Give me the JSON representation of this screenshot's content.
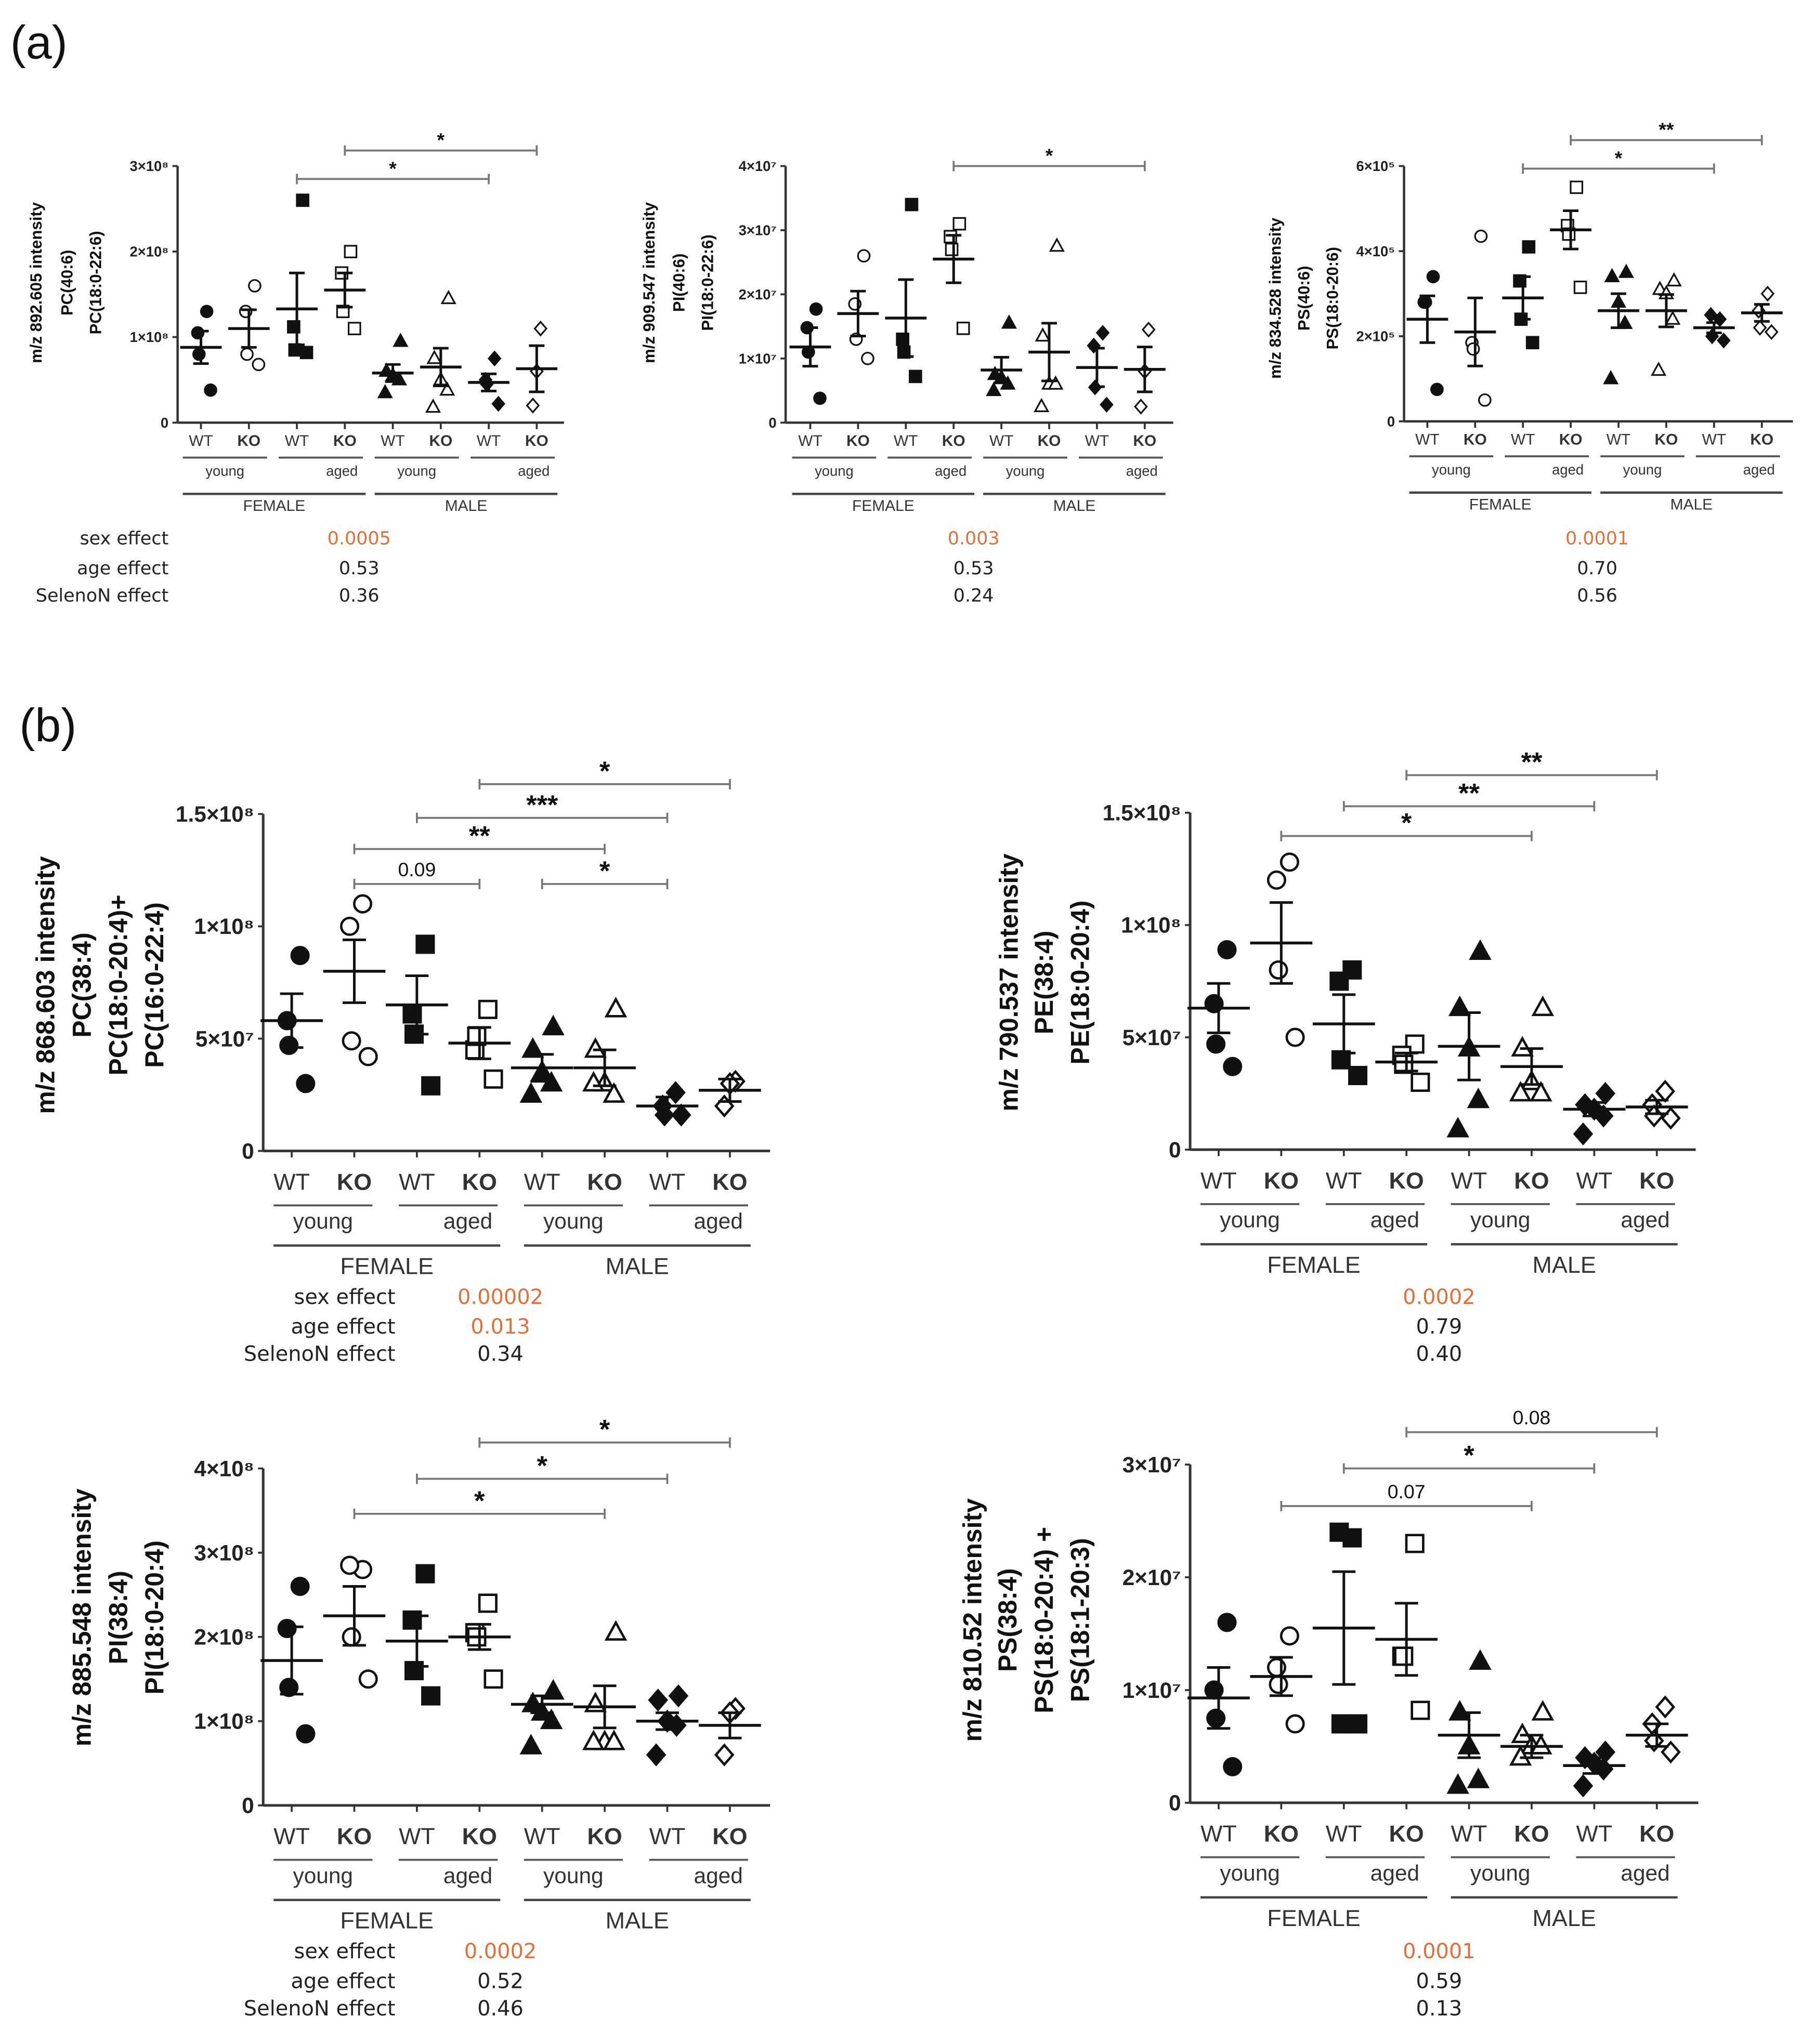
{
  "figure_labels": {
    "a": "(a)",
    "b": "(b)"
  },
  "colors": {
    "significant": "#e0703a",
    "text": "#222222",
    "axis": "#333333",
    "bracket": "#777777"
  },
  "chart_data": [
    {
      "id": "a1",
      "type": "scatter",
      "ylabel": [
        "m/z 892.605 intensity",
        "PC(40:6)",
        "PC(18:0-22:6)"
      ],
      "ylim": [
        0,
        3
      ],
      "unit_multiplier": 100000000,
      "yticks": [
        {
          "v": 0,
          "label": "0"
        },
        {
          "v": 1,
          "label": "1×10⁸"
        },
        {
          "v": 2,
          "label": "2×10⁸"
        },
        {
          "v": 3,
          "label": "3×10⁸"
        }
      ],
      "genotypes": [
        "WT",
        "KO",
        "WT",
        "KO",
        "WT",
        "KO",
        "WT",
        "KO"
      ],
      "ages": [
        "young",
        "aged",
        "young",
        "aged"
      ],
      "sexes": [
        "FEMALE",
        "MALE"
      ],
      "groups": [
        {
          "points": [
            1.3,
            1.05,
            0.8,
            0.38
          ],
          "mean": 0.88,
          "sem": 0.19
        },
        {
          "points": [
            1.6,
            1.3,
            0.8,
            0.68
          ],
          "mean": 1.1,
          "sem": 0.22
        },
        {
          "points": [
            2.6,
            1.12,
            0.85,
            0.82
          ],
          "mean": 1.33,
          "sem": 0.42
        },
        {
          "points": [
            2.0,
            1.75,
            1.3,
            1.1
          ],
          "mean": 1.55,
          "sem": 0.2
        },
        {
          "points": [
            0.95,
            0.6,
            0.55,
            0.5,
            0.35
          ],
          "mean": 0.58,
          "sem": 0.1
        },
        {
          "points": [
            1.45,
            0.75,
            0.5,
            0.38,
            0.18
          ],
          "mean": 0.65,
          "sem": 0.22
        },
        {
          "points": [
            0.75,
            0.5,
            0.45,
            0.22
          ],
          "mean": 0.47,
          "sem": 0.1
        },
        {
          "points": [
            1.1,
            0.6,
            0.2
          ],
          "mean": 0.63,
          "sem": 0.27
        }
      ],
      "brackets": [
        {
          "from": 2,
          "to": 6,
          "label": "*",
          "level": 0
        },
        {
          "from": 3,
          "to": 7,
          "label": "*",
          "level": 1
        }
      ],
      "stats": {
        "labels": [
          "sex effect",
          "age effect",
          "SelenoN effect"
        ],
        "values": [
          "0.0005",
          "0.53",
          "0.36"
        ],
        "significant": [
          true,
          false,
          false
        ]
      }
    },
    {
      "id": "a2",
      "type": "scatter",
      "ylabel": [
        "m/z 909.547 intensity",
        "PI(40:6)",
        "PI(18:0-22:6)"
      ],
      "ylim": [
        0,
        4
      ],
      "unit_multiplier": 10000000,
      "yticks": [
        {
          "v": 0,
          "label": "0"
        },
        {
          "v": 1,
          "label": "1×10⁷"
        },
        {
          "v": 2,
          "label": "2×10⁷"
        },
        {
          "v": 3,
          "label": "3×10⁷"
        },
        {
          "v": 4,
          "label": "4×10⁷"
        }
      ],
      "genotypes": [
        "WT",
        "KO",
        "WT",
        "KO",
        "WT",
        "KO",
        "WT",
        "KO"
      ],
      "ages": [
        "young",
        "aged",
        "young",
        "aged"
      ],
      "sexes": [
        "FEMALE",
        "MALE"
      ],
      "groups": [
        {
          "points": [
            1.77,
            1.48,
            1.1,
            0.38
          ],
          "mean": 1.18,
          "sem": 0.3
        },
        {
          "points": [
            2.6,
            1.85,
            1.3,
            1.0
          ],
          "mean": 1.7,
          "sem": 0.35
        },
        {
          "points": [
            3.4,
            1.3,
            1.1,
            0.72
          ],
          "mean": 1.63,
          "sem": 0.6
        },
        {
          "points": [
            3.1,
            2.9,
            2.7,
            1.47
          ],
          "mean": 2.55,
          "sem": 0.37
        },
        {
          "points": [
            1.55,
            0.75,
            0.7,
            0.6,
            0.5
          ],
          "mean": 0.82,
          "sem": 0.2
        },
        {
          "points": [
            2.75,
            1.35,
            0.6,
            0.6,
            0.25
          ],
          "mean": 1.1,
          "sem": 0.45
        },
        {
          "points": [
            1.4,
            1.2,
            0.55,
            0.28
          ],
          "mean": 0.86,
          "sem": 0.3
        },
        {
          "points": [
            1.45,
            0.8,
            0.25
          ],
          "mean": 0.83,
          "sem": 0.35
        }
      ],
      "brackets": [
        {
          "from": 3,
          "to": 7,
          "label": "*",
          "level": 0
        }
      ],
      "stats": {
        "labels": [],
        "values": [
          "0.003",
          "0.53",
          "0.24"
        ],
        "significant": [
          true,
          false,
          false
        ]
      }
    },
    {
      "id": "a3",
      "type": "scatter",
      "ylabel": [
        "m/z 834.528 intensity",
        "PS(40:6)",
        "PS(18:0-20:6)"
      ],
      "ylim": [
        0,
        6
      ],
      "unit_multiplier": 100000,
      "yticks": [
        {
          "v": 0,
          "label": "0"
        },
        {
          "v": 2,
          "label": "2×10⁵"
        },
        {
          "v": 4,
          "label": "4×10⁵"
        },
        {
          "v": 6,
          "label": "6×10⁵"
        }
      ],
      "genotypes": [
        "WT",
        "KO",
        "WT",
        "KO",
        "WT",
        "KO",
        "WT",
        "KO"
      ],
      "ages": [
        "young",
        "aged",
        "young",
        "aged"
      ],
      "sexes": [
        "FEMALE",
        "MALE"
      ],
      "groups": [
        {
          "points": [
            3.4,
            2.8,
            2.8,
            0.75
          ],
          "mean": 2.4,
          "sem": 0.55
        },
        {
          "points": [
            4.35,
            1.85,
            1.7,
            0.5
          ],
          "mean": 2.1,
          "sem": 0.8
        },
        {
          "points": [
            4.1,
            3.3,
            2.4,
            1.85
          ],
          "mean": 2.9,
          "sem": 0.5
        },
        {
          "points": [
            5.5,
            4.6,
            4.4,
            3.15
          ],
          "mean": 4.5,
          "sem": 0.45
        },
        {
          "points": [
            3.5,
            3.4,
            2.8,
            2.3,
            1.0
          ],
          "mean": 2.6,
          "sem": 0.4
        },
        {
          "points": [
            3.3,
            3.1,
            3.0,
            2.4,
            1.2
          ],
          "mean": 2.6,
          "sem": 0.38
        },
        {
          "points": [
            2.4,
            2.5,
            2.0,
            1.9
          ],
          "mean": 2.2,
          "sem": 0.12
        },
        {
          "points": [
            3.0,
            2.6,
            2.2,
            2.1
          ],
          "mean": 2.55,
          "sem": 0.2
        }
      ],
      "brackets": [
        {
          "from": 2,
          "to": 6,
          "label": "*",
          "level": 0
        },
        {
          "from": 3,
          "to": 7,
          "label": "**",
          "level": 1
        }
      ],
      "stats": {
        "labels": [],
        "values": [
          "0.0001",
          "0.70",
          "0.56"
        ],
        "significant": [
          true,
          false,
          false
        ]
      }
    },
    {
      "id": "b1",
      "type": "scatter",
      "ylabel": [
        "m/z 868.603 intensity",
        "PC(38:4)",
        "PC(18:0-20:4)+",
        "PC(16:0-22:4)"
      ],
      "ylim": [
        0,
        15
      ],
      "unit_multiplier": 10000000,
      "yticks": [
        {
          "v": 0,
          "label": "0"
        },
        {
          "v": 5,
          "label": "5×10⁷"
        },
        {
          "v": 10,
          "label": "1×10⁸"
        },
        {
          "v": 15,
          "label": "1.5×10⁸"
        }
      ],
      "genotypes": [
        "WT",
        "KO",
        "WT",
        "KO",
        "WT",
        "KO",
        "WT",
        "KO"
      ],
      "ages": [
        "young",
        "aged",
        "young",
        "aged"
      ],
      "sexes": [
        "FEMALE",
        "MALE"
      ],
      "groups": [
        {
          "points": [
            8.7,
            5.8,
            4.7,
            3.0
          ],
          "mean": 5.8,
          "sem": 1.2
        },
        {
          "points": [
            11,
            10,
            4.9,
            4.2
          ],
          "mean": 8.0,
          "sem": 1.4
        },
        {
          "points": [
            9.2,
            6.1,
            5.2,
            2.9
          ],
          "mean": 6.5,
          "sem": 1.3
        },
        {
          "points": [
            6.3,
            4.5,
            5.1,
            3.2
          ],
          "mean": 4.8,
          "sem": 0.7
        },
        {
          "points": [
            5.5,
            4.5,
            3.5,
            3.0,
            2.5
          ],
          "mean": 3.7,
          "sem": 0.6
        },
        {
          "points": [
            6.3,
            4.5,
            3.0,
            2.5,
            3.0
          ],
          "mean": 3.7,
          "sem": 0.8
        },
        {
          "points": [
            2.6,
            2.0,
            1.6,
            1.6
          ],
          "mean": 2.0,
          "sem": 0.4
        },
        {
          "points": [
            3.1,
            3.0,
            2.0
          ],
          "mean": 2.7,
          "sem": 0.5
        }
      ],
      "brackets": [
        {
          "from": 1,
          "to": 3,
          "label": "0.09",
          "level": 0
        },
        {
          "from": 4,
          "to": 6,
          "label": "*",
          "level": 0
        },
        {
          "from": 1,
          "to": 5,
          "label": "**",
          "level": 1
        },
        {
          "from": 2,
          "to": 6,
          "label": "***",
          "level": 2
        },
        {
          "from": 3,
          "to": 7,
          "label": "*",
          "level": 3
        }
      ],
      "stats": {
        "labels": [
          "sex effect",
          "age effect",
          "SelenoN effect"
        ],
        "values": [
          "0.00002",
          "0.013",
          "0.34"
        ],
        "significant": [
          true,
          true,
          false
        ]
      }
    },
    {
      "id": "b2",
      "type": "scatter",
      "ylabel": [
        "m/z 790.537 intensity",
        "PE(38:4)",
        "PE(18:0-20:4)"
      ],
      "ylim": [
        0,
        15
      ],
      "unit_multiplier": 10000000,
      "yticks": [
        {
          "v": 0,
          "label": "0"
        },
        {
          "v": 5,
          "label": "5×10⁷"
        },
        {
          "v": 10,
          "label": "1×10⁸"
        },
        {
          "v": 15,
          "label": "1.5×10⁸"
        }
      ],
      "genotypes": [
        "WT",
        "KO",
        "WT",
        "KO",
        "WT",
        "KO",
        "WT",
        "KO"
      ],
      "ages": [
        "young",
        "aged",
        "young",
        "aged"
      ],
      "sexes": [
        "FEMALE",
        "MALE"
      ],
      "groups": [
        {
          "points": [
            8.9,
            6.5,
            4.7,
            3.7
          ],
          "mean": 6.3,
          "sem": 1.1
        },
        {
          "points": [
            12.8,
            12,
            8,
            5.0
          ],
          "mean": 9.2,
          "sem": 1.8
        },
        {
          "points": [
            8.0,
            7.5,
            4.0,
            3.3
          ],
          "mean": 5.6,
          "sem": 1.3
        },
        {
          "points": [
            4.7,
            4.2,
            3.8,
            3.0
          ],
          "mean": 3.9,
          "sem": 0.4
        },
        {
          "points": [
            8.8,
            6.3,
            4.5,
            2.2,
            0.9
          ],
          "mean": 4.6,
          "sem": 1.5
        },
        {
          "points": [
            6.3,
            4.5,
            3.0,
            2.5,
            2.5
          ],
          "mean": 3.7,
          "sem": 0.8
        },
        {
          "points": [
            2.5,
            2.0,
            1.8,
            1.5,
            0.7
          ],
          "mean": 1.8,
          "sem": 0.3
        },
        {
          "points": [
            2.6,
            2.0,
            1.5,
            1.4
          ],
          "mean": 1.9,
          "sem": 0.3
        }
      ],
      "brackets": [
        {
          "from": 1,
          "to": 5,
          "label": "*",
          "level": 0
        },
        {
          "from": 2,
          "to": 6,
          "label": "**",
          "level": 1
        },
        {
          "from": 3,
          "to": 7,
          "label": "**",
          "level": 2
        }
      ],
      "stats": {
        "labels": [],
        "values": [
          "0.0002",
          "0.79",
          "0.40"
        ],
        "significant": [
          true,
          false,
          false
        ]
      }
    },
    {
      "id": "b3",
      "type": "scatter",
      "ylabel": [
        "m/z 885.548 intensity",
        "PI(38:4)",
        "PI(18:0-20:4)"
      ],
      "ylim": [
        0,
        4
      ],
      "unit_multiplier": 100000000,
      "yticks": [
        {
          "v": 0,
          "label": "0"
        },
        {
          "v": 1,
          "label": "1×10⁸"
        },
        {
          "v": 2,
          "label": "2×10⁸"
        },
        {
          "v": 3,
          "label": "3×10⁸"
        },
        {
          "v": 4,
          "label": "4×10⁸"
        }
      ],
      "genotypes": [
        "WT",
        "KO",
        "WT",
        "KO",
        "WT",
        "KO",
        "WT",
        "KO"
      ],
      "ages": [
        "young",
        "aged",
        "young",
        "aged"
      ],
      "sexes": [
        "FEMALE",
        "MALE"
      ],
      "groups": [
        {
          "points": [
            2.6,
            2.1,
            1.4,
            0.85
          ],
          "mean": 1.72,
          "sem": 0.4
        },
        {
          "points": [
            2.8,
            2.85,
            2.0,
            1.5
          ],
          "mean": 2.25,
          "sem": 0.35
        },
        {
          "points": [
            2.75,
            2.2,
            1.6,
            1.3
          ],
          "mean": 1.95,
          "sem": 0.3
        },
        {
          "points": [
            2.4,
            2.05,
            2.0,
            1.5
          ],
          "mean": 2.0,
          "sem": 0.15
        },
        {
          "points": [
            1.35,
            1.2,
            1.1,
            1.0,
            0.7
          ],
          "mean": 1.2,
          "sem": 0.1
        },
        {
          "points": [
            2.05,
            1.2,
            0.75,
            0.75,
            0.75
          ],
          "mean": 1.17,
          "sem": 0.25
        },
        {
          "points": [
            1.3,
            1.25,
            1.0,
            0.95,
            0.6
          ],
          "mean": 1.0,
          "sem": 0.1
        },
        {
          "points": [
            1.15,
            1.1,
            0.6
          ],
          "mean": 0.95,
          "sem": 0.15
        }
      ],
      "brackets": [
        {
          "from": 1,
          "to": 5,
          "label": "*",
          "level": 0
        },
        {
          "from": 2,
          "to": 6,
          "label": "*",
          "level": 1
        },
        {
          "from": 3,
          "to": 7,
          "label": "*",
          "level": 2
        }
      ],
      "stats": {
        "labels": [
          "sex effect",
          "age effect",
          "SelenoN effect"
        ],
        "values": [
          "0.0002",
          "0.52",
          "0.46"
        ],
        "significant": [
          true,
          false,
          false
        ]
      }
    },
    {
      "id": "b4",
      "type": "scatter",
      "ylabel": [
        "m/z 810.52 intensity",
        "PS(38:4)",
        "PS(18:0-20:4) +",
        "PS(18:1-20:3)"
      ],
      "ylim": [
        0,
        3
      ],
      "unit_multiplier": 10000000,
      "yticks": [
        {
          "v": 0,
          "label": "0"
        },
        {
          "v": 1,
          "label": "1×10⁷"
        },
        {
          "v": 2,
          "label": "2×10⁷"
        },
        {
          "v": 3,
          "label": "3×10⁷"
        }
      ],
      "genotypes": [
        "WT",
        "KO",
        "WT",
        "KO",
        "WT",
        "KO",
        "WT",
        "KO"
      ],
      "ages": [
        "young",
        "aged",
        "young",
        "aged"
      ],
      "sexes": [
        "FEMALE",
        "MALE"
      ],
      "groups": [
        {
          "points": [
            1.6,
            1.0,
            0.75,
            0.32
          ],
          "mean": 0.93,
          "sem": 0.27
        },
        {
          "points": [
            1.48,
            1.2,
            1.05,
            0.7
          ],
          "mean": 1.12,
          "sem": 0.17
        },
        {
          "points": [
            2.35,
            2.4,
            0.7,
            0.7
          ],
          "mean": 1.55,
          "sem": 0.5
        },
        {
          "points": [
            2.3,
            1.3,
            1.3,
            0.82
          ],
          "mean": 1.45,
          "sem": 0.32
        },
        {
          "points": [
            1.25,
            0.8,
            0.5,
            0.2,
            0.15
          ],
          "mean": 0.6,
          "sem": 0.2
        },
        {
          "points": [
            0.8,
            0.6,
            0.5,
            0.5,
            0.4
          ],
          "mean": 0.5,
          "sem": 0.1
        },
        {
          "points": [
            0.45,
            0.4,
            0.35,
            0.3,
            0.15
          ],
          "mean": 0.33,
          "sem": 0.07
        },
        {
          "points": [
            0.85,
            0.7,
            0.55,
            0.45
          ],
          "mean": 0.6,
          "sem": 0.1
        }
      ],
      "brackets": [
        {
          "from": 1,
          "to": 5,
          "label": "0.07",
          "level": 0
        },
        {
          "from": 2,
          "to": 6,
          "label": "*",
          "level": 1
        },
        {
          "from": 3,
          "to": 7,
          "label": "0.08",
          "level": 2
        }
      ],
      "stats": {
        "labels": [],
        "values": [
          "0.0001",
          "0.59",
          "0.13"
        ],
        "significant": [
          true,
          false,
          false
        ]
      }
    }
  ]
}
